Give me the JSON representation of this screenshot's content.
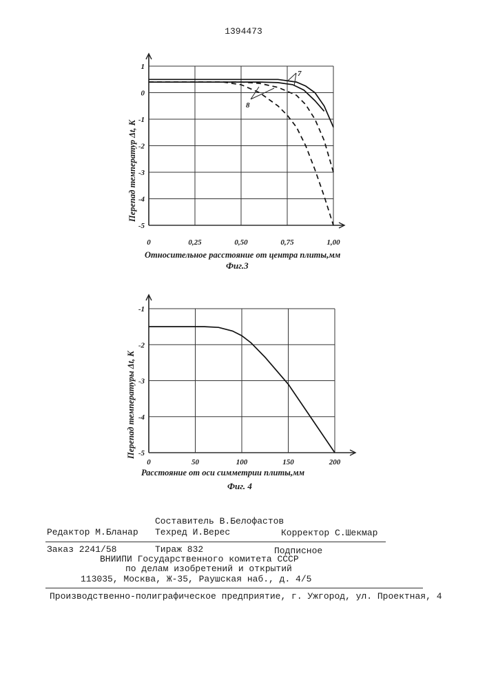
{
  "patent_number": "1394473",
  "figures": {
    "fig3": {
      "caption": "Фиг.3",
      "ylabel": "Перепад температур Δt, K",
      "xlabel": "Относительное расстояние от центра плиты,мм",
      "x_ticks": [
        "0",
        "0,25",
        "0,50",
        "0,75",
        "1,00"
      ],
      "y_ticks": [
        "1",
        "0",
        "-1",
        "-2",
        "-3",
        "-4",
        "-5"
      ],
      "curve_labels": [
        "7",
        "8"
      ]
    },
    "fig4": {
      "caption": "Фиг. 4",
      "ylabel": "Перепад температуры Δt, K",
      "xlabel": "Расстояние от оси симметрии плиты,мм",
      "x_ticks": [
        "0",
        "50",
        "100",
        "150",
        "200"
      ],
      "y_ticks": [
        "-1",
        "-2",
        "-3",
        "-4",
        "-5"
      ]
    }
  },
  "chart_data": [
    {
      "type": "line",
      "title": "Фиг.3",
      "xlabel": "Относительное расстояние от центра плиты,мм",
      "ylabel": "Перепад температур Δt, K",
      "xlim": [
        0,
        1.0
      ],
      "ylim": [
        -5,
        1
      ],
      "grid": true,
      "series": [
        {
          "name": "7",
          "style": "solid",
          "x": [
            0,
            0.6,
            0.7,
            0.8,
            0.85,
            0.9,
            0.95,
            1.0
          ],
          "y": [
            0.5,
            0.5,
            0.5,
            0.4,
            0.25,
            0.0,
            -0.5,
            -1.3
          ]
        },
        {
          "name": "7",
          "style": "solid",
          "x": [
            0,
            0.6,
            0.7,
            0.78,
            0.84,
            0.9,
            0.95
          ],
          "y": [
            0.4,
            0.4,
            0.38,
            0.3,
            0.1,
            -0.3,
            -0.7
          ]
        },
        {
          "name": "8",
          "style": "dashed",
          "x": [
            0,
            0.5,
            0.6,
            0.7,
            0.8,
            0.85,
            0.9,
            0.95,
            1.0
          ],
          "y": [
            0.4,
            0.4,
            0.35,
            0.2,
            -0.1,
            -0.45,
            -1.0,
            -1.8,
            -3.0
          ]
        },
        {
          "name": "8",
          "style": "dashed",
          "x": [
            0,
            0.4,
            0.5,
            0.6,
            0.7,
            0.75,
            0.8,
            0.85,
            0.9,
            0.95,
            1.0
          ],
          "y": [
            0.4,
            0.4,
            0.3,
            0.0,
            -0.5,
            -0.85,
            -1.3,
            -2.0,
            -2.9,
            -3.9,
            -5.0
          ]
        }
      ]
    },
    {
      "type": "line",
      "title": "Фиг. 4",
      "xlabel": "Расстояние от оси симметрии плиты,мм",
      "ylabel": "Перепад температуры Δt, K",
      "xlim": [
        0,
        200
      ],
      "ylim": [
        -5,
        -1
      ],
      "grid": true,
      "series": [
        {
          "x": [
            0,
            60,
            75,
            90,
            100,
            110,
            125,
            150,
            175,
            200
          ],
          "y": [
            -1.5,
            -1.5,
            -1.52,
            -1.62,
            -1.75,
            -1.95,
            -2.35,
            -3.1,
            -4.05,
            -5.0
          ]
        }
      ]
    }
  ],
  "footer": {
    "compiler": "Составитель В.Белофастов",
    "editor": "Редактор М.Бланар",
    "techred": "Техред И.Верес",
    "corrector": "Корректор С.Шекмар",
    "order": "Заказ 2241/58",
    "tirazh": "Тираж 832",
    "podpisnoe": "Подписное",
    "org1": "ВНИИПИ Государственного комитета СССР",
    "org2": "по делам изобретений и открытий",
    "address": "113035, Москва, Ж-35, Раушская наб., д. 4/5",
    "printer": "Производственно-полиграфическое предприятие, г. Ужгород, ул. Проектная, 4"
  }
}
